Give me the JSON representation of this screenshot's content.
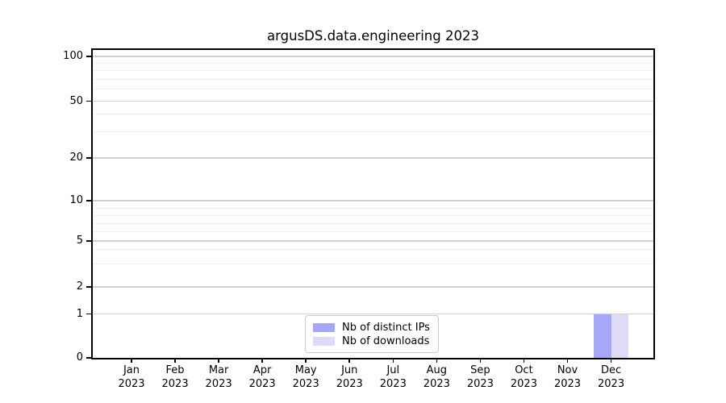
{
  "chart_data": {
    "type": "bar",
    "title": "argusDS.data.engineering 2023",
    "categories": [
      {
        "month": "Jan",
        "year": "2023"
      },
      {
        "month": "Feb",
        "year": "2023"
      },
      {
        "month": "Mar",
        "year": "2023"
      },
      {
        "month": "Apr",
        "year": "2023"
      },
      {
        "month": "May",
        "year": "2023"
      },
      {
        "month": "Jun",
        "year": "2023"
      },
      {
        "month": "Jul",
        "year": "2023"
      },
      {
        "month": "Aug",
        "year": "2023"
      },
      {
        "month": "Sep",
        "year": "2023"
      },
      {
        "month": "Oct",
        "year": "2023"
      },
      {
        "month": "Nov",
        "year": "2023"
      },
      {
        "month": "Dec",
        "year": "2023"
      }
    ],
    "series": [
      {
        "name": "Nb of distinct IPs",
        "color": "#a7a7f7",
        "values": [
          0,
          0,
          0,
          0,
          0,
          0,
          0,
          0,
          0,
          0,
          0,
          1
        ]
      },
      {
        "name": "Nb of downloads",
        "color": "#dcdcf8",
        "values": [
          0,
          0,
          0,
          0,
          0,
          0,
          0,
          0,
          0,
          0,
          0,
          1
        ]
      }
    ],
    "xlabel": "",
    "ylabel": "",
    "yscale": "symlog",
    "y_ticks": [
      0,
      1,
      2,
      5,
      10,
      20,
      50,
      100
    ],
    "y_minor_ticks": [
      3,
      4,
      6,
      7,
      8,
      9,
      30,
      40,
      60,
      70,
      80,
      90
    ],
    "ylim": [
      0,
      115
    ],
    "grid": true,
    "legend_position": "lower center"
  },
  "colors": {
    "axis": "#000000",
    "grid_major": "#d2d2d2",
    "grid_minor": "#f0f0f0",
    "background": "#ffffff"
  }
}
